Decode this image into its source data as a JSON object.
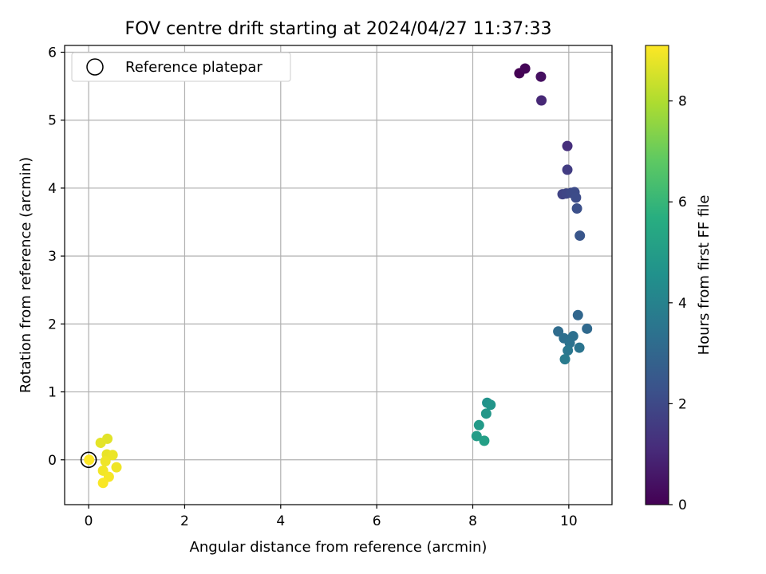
{
  "chart_data": {
    "type": "scatter",
    "title": "FOV centre drift starting at 2024/04/27 11:37:33",
    "xlabel": "Angular distance from reference (arcmin)",
    "ylabel": "Rotation from reference (arcmin)",
    "xlim": [
      -0.5,
      10.9
    ],
    "ylim": [
      -0.66,
      6.1
    ],
    "xticks": [
      0,
      2,
      4,
      6,
      8,
      10
    ],
    "yticks": [
      0,
      1,
      2,
      3,
      4,
      5,
      6
    ],
    "grid": true,
    "legend": {
      "position": "top-left",
      "entries": [
        "Reference platepar"
      ]
    },
    "reference_point": {
      "x": 0,
      "y": 0
    },
    "colorbar": {
      "label": "Hours from first FF file",
      "range": [
        0,
        9.1
      ],
      "ticks": [
        0,
        2,
        4,
        6,
        8
      ],
      "colormap": "viridis"
    },
    "points": [
      {
        "x": 8.97,
        "y": 5.69,
        "c": 0.0
      },
      {
        "x": 9.09,
        "y": 5.76,
        "c": 0.1
      },
      {
        "x": 9.42,
        "y": 5.64,
        "c": 0.35
      },
      {
        "x": 9.43,
        "y": 5.29,
        "c": 1.0
      },
      {
        "x": 9.97,
        "y": 4.62,
        "c": 1.2
      },
      {
        "x": 9.97,
        "y": 4.27,
        "c": 1.6
      },
      {
        "x": 9.87,
        "y": 3.91,
        "c": 1.8
      },
      {
        "x": 9.95,
        "y": 3.92,
        "c": 1.9
      },
      {
        "x": 10.05,
        "y": 3.93,
        "c": 2.0
      },
      {
        "x": 10.12,
        "y": 3.94,
        "c": 2.05
      },
      {
        "x": 10.15,
        "y": 3.86,
        "c": 2.1
      },
      {
        "x": 10.17,
        "y": 3.7,
        "c": 2.2
      },
      {
        "x": 10.23,
        "y": 3.3,
        "c": 2.4
      },
      {
        "x": 10.19,
        "y": 2.13,
        "c": 3.0
      },
      {
        "x": 10.38,
        "y": 1.93,
        "c": 3.1
      },
      {
        "x": 9.78,
        "y": 1.89,
        "c": 3.2
      },
      {
        "x": 9.9,
        "y": 1.79,
        "c": 3.3
      },
      {
        "x": 10.09,
        "y": 1.82,
        "c": 3.35
      },
      {
        "x": 10.02,
        "y": 1.72,
        "c": 3.4
      },
      {
        "x": 10.22,
        "y": 1.65,
        "c": 3.5
      },
      {
        "x": 9.98,
        "y": 1.61,
        "c": 3.6
      },
      {
        "x": 9.92,
        "y": 1.48,
        "c": 3.75
      },
      {
        "x": 8.3,
        "y": 0.84,
        "c": 4.6
      },
      {
        "x": 8.37,
        "y": 0.81,
        "c": 4.7
      },
      {
        "x": 8.28,
        "y": 0.68,
        "c": 4.8
      },
      {
        "x": 8.13,
        "y": 0.51,
        "c": 4.9
      },
      {
        "x": 8.08,
        "y": 0.35,
        "c": 5.0
      },
      {
        "x": 8.24,
        "y": 0.28,
        "c": 5.1
      },
      {
        "x": 0.39,
        "y": 0.31,
        "c": 8.7
      },
      {
        "x": 0.25,
        "y": 0.25,
        "c": 8.75
      },
      {
        "x": 0.38,
        "y": 0.08,
        "c": 8.8
      },
      {
        "x": 0.5,
        "y": 0.07,
        "c": 8.85
      },
      {
        "x": 0.35,
        "y": -0.02,
        "c": 8.9
      },
      {
        "x": 0.58,
        "y": -0.11,
        "c": 8.9
      },
      {
        "x": 0.3,
        "y": -0.16,
        "c": 8.95
      },
      {
        "x": 0.42,
        "y": -0.25,
        "c": 9.0
      },
      {
        "x": 0.3,
        "y": -0.34,
        "c": 9.05
      },
      {
        "x": 0.01,
        "y": 0.0,
        "c": 9.1
      }
    ]
  }
}
